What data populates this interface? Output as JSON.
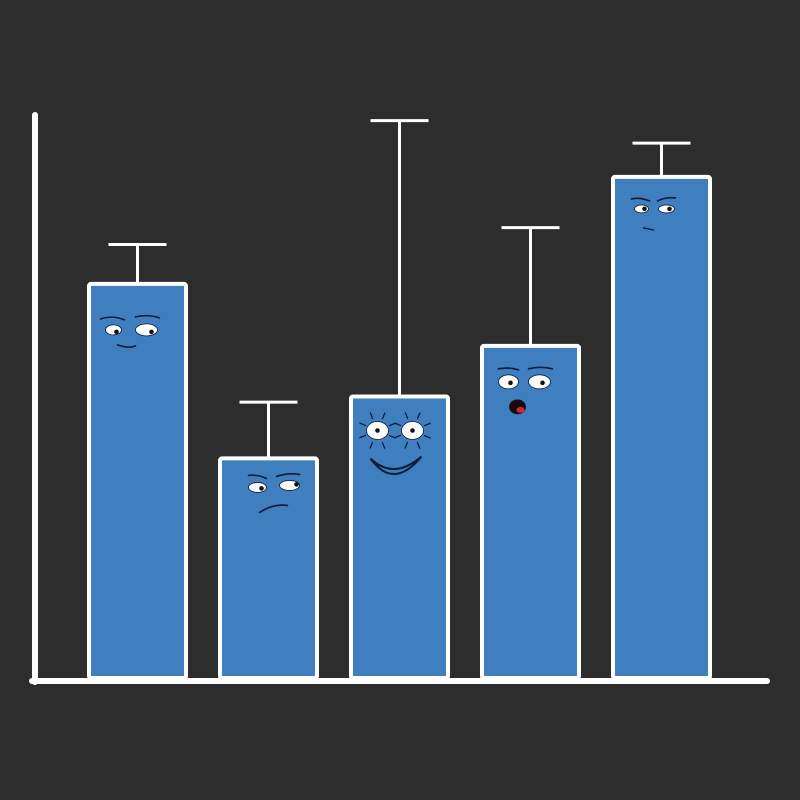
{
  "chart_data": {
    "type": "bar",
    "title": "",
    "xlabel": "",
    "ylabel": "",
    "categories": [
      "",
      "",
      "",
      "",
      ""
    ],
    "values": [
      0.7,
      0.39,
      0.5,
      0.59,
      0.89
    ],
    "error_upper": [
      0.07,
      0.1,
      0.49,
      0.21,
      0.06
    ],
    "ylim": [
      0,
      1
    ],
    "grid": false,
    "tick_labels_shown": false,
    "bar_faces": [
      "bored",
      "skeptical",
      "happy",
      "surprised",
      "annoyed"
    ],
    "colors": {
      "background": "#2d2d2e",
      "bar": "#3f7fbf",
      "outline": "#ffffff",
      "face_ink": "#0d1b3a",
      "mouth_red": "#e0202a"
    }
  }
}
